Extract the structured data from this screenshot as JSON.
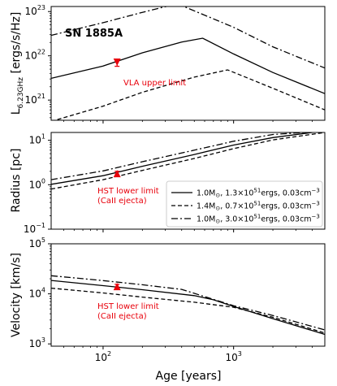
{
  "figure_label": "SN 1885A",
  "colors": {
    "models": "#000000",
    "annotation": "#e8000b",
    "axes": "#000000"
  },
  "chart_data": [
    {
      "type": "line",
      "panel": "luminosity",
      "ylabel_main": "L",
      "ylabel_sub": "6.23GHz",
      "ylabel_unit": " [ergs/s/Hz]",
      "xscale": "log",
      "yscale": "log",
      "xlim": [
        40,
        5000
      ],
      "ylim": [
        3.5e+20,
        1.3e+23
      ],
      "yticks": [
        {
          "base": "10",
          "exp": "21",
          "value": 1e+21
        },
        {
          "base": "10",
          "exp": "22",
          "value": 1e+22
        },
        {
          "base": "10",
          "exp": "23",
          "value": 1e+23
        }
      ],
      "series": [
        {
          "style": "solid",
          "x": [
            40,
            100,
            200,
            400,
            580,
            1000,
            2000,
            5000
          ],
          "y": [
            3.1e+21,
            5.9e+21,
            1.17e+22,
            2.05e+22,
            2.5e+22,
            1.1e+22,
            4.2e+21,
            1.4e+21
          ]
        },
        {
          "style": "dashed",
          "x": [
            40,
            100,
            200,
            500,
            900,
            2000,
            5000
          ],
          "y": [
            3.3e+20,
            7.3e+20,
            1.5e+21,
            3.3e+21,
            4.8e+21,
            1.85e+21,
            6e+20
          ]
        },
        {
          "style": "dashdot",
          "x": [
            40,
            100,
            200,
            370,
            1000,
            2000,
            5000
          ],
          "y": [
            2.9e+22,
            5.6e+22,
            9.6e+22,
            1.5e+23,
            4.4e+22,
            1.6e+22,
            5.3e+21
          ]
        }
      ],
      "annotation": {
        "marker": "down-triangle",
        "x": 128,
        "y": 7.2e+21,
        "error_low": 5.8e+21,
        "error_high": 8.3e+21,
        "label": "VLA upper limit"
      }
    },
    {
      "type": "line",
      "panel": "radius",
      "ylabel": "Radius [pc]",
      "xscale": "log",
      "yscale": "log",
      "xlim": [
        40,
        5000
      ],
      "ylim": [
        0.1,
        15
      ],
      "yticks": [
        {
          "base": "10",
          "exp": "−1",
          "value": 0.1
        },
        {
          "base": "10",
          "exp": "0",
          "value": 1
        },
        {
          "base": "10",
          "exp": "1",
          "value": 10
        }
      ],
      "series": [
        {
          "style": "solid",
          "name_mass": "1.0M",
          "name_rest": ", 1.3×10",
          "name_exp": "51",
          "name_tail": "ergs, 0.03cm",
          "name_tail_exp": "−3",
          "x": [
            40,
            100,
            200,
            500,
            1000,
            2000,
            4000
          ],
          "y": [
            1.02,
            1.6,
            2.6,
            4.8,
            7.8,
            11.5,
            15
          ]
        },
        {
          "style": "dashed",
          "name_mass": "1.4M",
          "name_rest": ", 0.7×10",
          "name_exp": "51",
          "name_tail": "ergs, 0.03cm",
          "name_tail_exp": "−3",
          "x": [
            40,
            100,
            200,
            500,
            1000,
            2000,
            5000
          ],
          "y": [
            0.8,
            1.3,
            2.1,
            3.9,
            6.5,
            10.2,
            15
          ]
        },
        {
          "style": "dashdot",
          "name_mass": "1.0M",
          "name_rest": ", 3.0×10",
          "name_exp": "51",
          "name_tail": "ergs, 0.03cm",
          "name_tail_exp": "−3",
          "x": [
            40,
            100,
            200,
            500,
            1000,
            2000,
            3500
          ],
          "y": [
            1.3,
            2.05,
            3.3,
            6.0,
            9.5,
            13.5,
            15
          ]
        }
      ],
      "legend_location": "lower-right",
      "annotation": {
        "marker": "up-triangle",
        "x": 128,
        "y": 1.78,
        "error_low": 1.55,
        "error_high": 2.0,
        "label_line1": "HST lower limit",
        "label_line2": "(CaII ejecta)"
      }
    },
    {
      "type": "line",
      "panel": "velocity",
      "ylabel": "Velocity [km/s]",
      "xlabel": "Age [years]",
      "xscale": "log",
      "yscale": "log",
      "xlim": [
        40,
        5000
      ],
      "ylim": [
        900,
        100000.0
      ],
      "yticks": [
        {
          "base": "10",
          "exp": "3",
          "value": 1000
        },
        {
          "base": "10",
          "exp": "4",
          "value": 10000
        },
        {
          "base": "10",
          "exp": "5",
          "value": 100000
        }
      ],
      "xticks": [
        {
          "base": "10",
          "exp": "2",
          "value": 100
        },
        {
          "base": "10",
          "exp": "3",
          "value": 1000
        }
      ],
      "series": [
        {
          "style": "solid",
          "x": [
            40,
            100,
            200,
            500,
            700,
            1000,
            2000,
            5000
          ],
          "y": [
            18500,
            14600,
            12100,
            9200,
            7600,
            5600,
            3200,
            1550
          ]
        },
        {
          "style": "dashed",
          "x": [
            40,
            100,
            200,
            500,
            1000,
            2000,
            5000
          ],
          "y": [
            13000,
            10400,
            8600,
            6800,
            5400,
            3400,
            1650
          ]
        },
        {
          "style": "dashdot",
          "x": [
            40,
            100,
            200,
            400,
            1000,
            2000,
            5000
          ],
          "y": [
            23000,
            18400,
            15200,
            12300,
            5800,
            3700,
            1900
          ]
        }
      ],
      "annotation": {
        "marker": "up-triangle",
        "x": 128,
        "y": 14000,
        "error_low": 12500,
        "error_high": 15500,
        "label_line1": "HST lower limit",
        "label_line2": "(CaII ejecta)"
      }
    }
  ]
}
